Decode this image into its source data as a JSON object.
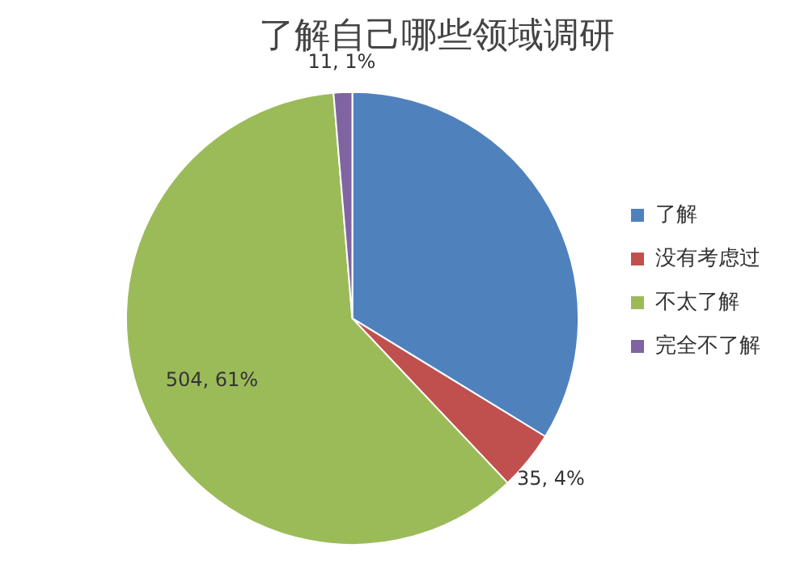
{
  "chart_data": {
    "type": "pie",
    "title": "了解自己哪些领域调研",
    "categories": [
      "了解",
      "没有考虑过",
      "不太了解",
      "完全不了解"
    ],
    "values": [
      280,
      35,
      504,
      11
    ],
    "colors": [
      "#4f81bd",
      "#c0504d",
      "#9bbb59",
      "#8064a2"
    ],
    "value_labels": [
      null,
      "35, 4%",
      "504, 61%",
      "11, 1%"
    ],
    "legend": "right"
  }
}
